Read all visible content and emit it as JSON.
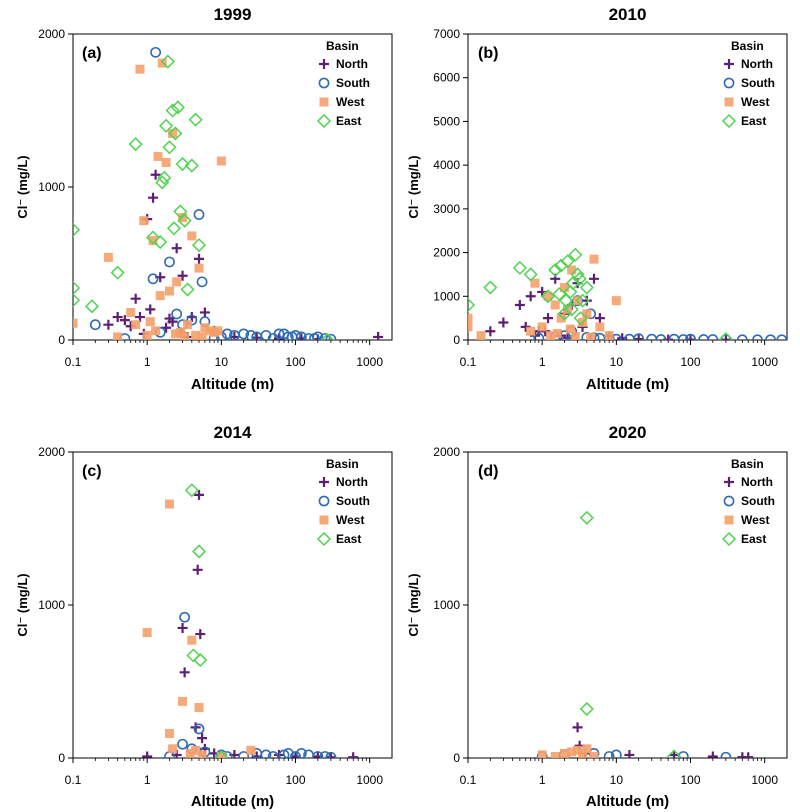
{
  "colors": {
    "North": "#5b1f74",
    "South": "#2e6bb5",
    "West": "#f5a06a",
    "East": "#4fd44f"
  },
  "chart_data": [
    {
      "type": "scatter",
      "title": "1999",
      "panel_label": "(a)",
      "xlabel": "Altitude (m)",
      "ylabel": "Cl⁻ (mg/L)",
      "xscale": "log",
      "xlim": [
        0.1,
        2000
      ],
      "ylim": [
        0,
        2000
      ],
      "xticks": [
        0.1,
        1,
        10,
        100,
        1000
      ],
      "xtick_labels": [
        "0.1",
        "1",
        "10",
        "100",
        "1000"
      ],
      "yticks": [
        0,
        1000,
        2000
      ],
      "ytick_labels": [
        "0",
        "1000",
        "2000"
      ],
      "legend_title": "Basin",
      "legend_position": "top-right",
      "series": [
        {
          "name": "North",
          "marker": "plus",
          "x": [
            0.3,
            0.5,
            0.7,
            1.2,
            1.3,
            1.5,
            2.0,
            2.5,
            3.0,
            5.0,
            1.0,
            0.8,
            0.6,
            2.2,
            4.0,
            0.4,
            1.8,
            3.5,
            6.0,
            8.0,
            1.1,
            0.9,
            2.8,
            15.0,
            30.0,
            60.0,
            120.0,
            200.0,
            1300.0
          ],
          "y": [
            100,
            130,
            270,
            930,
            1080,
            410,
            140,
            600,
            420,
            530,
            790,
            150,
            90,
            120,
            150,
            150,
            80,
            20,
            180,
            60,
            200,
            40,
            50,
            20,
            15,
            10,
            10,
            5,
            20
          ]
        },
        {
          "name": "South",
          "marker": "circle",
          "x": [
            1.3,
            2.0,
            5.0,
            5.5,
            1.2,
            0.2,
            0.5,
            3.0,
            4.0,
            2.5,
            1.5,
            8.0,
            10.0,
            15.0,
            20.0,
            30.0,
            40.0,
            50.0,
            60.0,
            80.0,
            100.0,
            120.0,
            150.0,
            200.0,
            250.0,
            300.0,
            6.0,
            12.0,
            25.0,
            70.0,
            90.0,
            180.0
          ],
          "y": [
            1880,
            510,
            820,
            380,
            400,
            100,
            10,
            100,
            130,
            170,
            50,
            10,
            20,
            30,
            40,
            20,
            30,
            10,
            40,
            20,
            30,
            20,
            10,
            20,
            10,
            5,
            120,
            40,
            30,
            40,
            20,
            10
          ]
        },
        {
          "name": "West",
          "marker": "square",
          "x": [
            0.8,
            1.6,
            1.4,
            1.8,
            2.2,
            3.0,
            4.0,
            5.0,
            10.0,
            0.3,
            0.6,
            0.9,
            1.2,
            1.5,
            2.0,
            2.5,
            3.5,
            6.0,
            7.0,
            8.0,
            9.0,
            0.1,
            0.4,
            1.0,
            2.8,
            4.5,
            5.5,
            0.7,
            1.1,
            1.3,
            2.4,
            3.2
          ],
          "y": [
            1770,
            1810,
            1200,
            1160,
            1350,
            800,
            680,
            470,
            1170,
            540,
            180,
            780,
            650,
            290,
            320,
            380,
            100,
            80,
            60,
            50,
            60,
            110,
            20,
            30,
            50,
            30,
            20,
            100,
            120,
            60,
            40,
            20
          ]
        },
        {
          "name": "East",
          "marker": "diamond",
          "x": [
            0.1,
            0.1,
            0.1,
            0.18,
            0.4,
            0.7,
            1.2,
            1.6,
            1.8,
            1.9,
            2.0,
            2.2,
            2.4,
            2.6,
            2.8,
            3.0,
            3.5,
            4.0,
            4.5,
            5.0,
            1.7,
            2.3,
            1.5,
            3.2,
            270.0
          ],
          "y": [
            720,
            340,
            260,
            220,
            440,
            1280,
            670,
            1030,
            1400,
            1820,
            1260,
            1500,
            1350,
            1520,
            840,
            1150,
            330,
            1140,
            1440,
            620,
            1060,
            730,
            640,
            780,
            0
          ]
        }
      ]
    },
    {
      "type": "scatter",
      "title": "2010",
      "panel_label": "(b)",
      "xlabel": "Altitude (m)",
      "ylabel": "Cl⁻ (mg/L)",
      "xscale": "log",
      "xlim": [
        0.1,
        2000
      ],
      "ylim": [
        0,
        7000
      ],
      "xticks": [
        0.1,
        1,
        10,
        100,
        1000
      ],
      "xtick_labels": [
        "0.1",
        "1",
        "10",
        "100",
        "1000"
      ],
      "yticks": [
        0,
        1000,
        2000,
        3000,
        4000,
        5000,
        6000,
        7000
      ],
      "ytick_labels": [
        "0",
        "1000",
        "2000",
        "3000",
        "4000",
        "5000",
        "6000",
        "7000"
      ],
      "legend_title": "Basin",
      "legend_position": "top-right",
      "series": [
        {
          "name": "North",
          "marker": "plus",
          "x": [
            0.2,
            0.3,
            0.5,
            0.7,
            0.9,
            1.0,
            1.2,
            1.5,
            2.0,
            2.5,
            3.0,
            4.0,
            5.0,
            6.0,
            0.6,
            0.8,
            1.1,
            1.8,
            2.2,
            3.5,
            8.0,
            12.0,
            20.0,
            50.0,
            100.0,
            300.0
          ],
          "y": [
            200,
            400,
            800,
            1000,
            200,
            1100,
            500,
            1400,
            600,
            800,
            1300,
            900,
            1400,
            500,
            300,
            100,
            200,
            100,
            50,
            300,
            80,
            40,
            20,
            10,
            10,
            5
          ]
        },
        {
          "name": "South",
          "marker": "circle",
          "x": [
            0.9,
            1.5,
            2.0,
            3.0,
            4.0,
            5.0,
            6.0,
            8.0,
            10.0,
            15.0,
            20.0,
            30.0,
            40.0,
            60.0,
            80.0,
            100.0,
            150.0,
            200.0,
            300.0,
            500.0,
            800.0,
            1200.0,
            1700.0,
            2.5,
            4.5
          ],
          "y": [
            40,
            80,
            100,
            900,
            60,
            50,
            40,
            30,
            20,
            20,
            30,
            20,
            10,
            20,
            10,
            20,
            10,
            10,
            10,
            5,
            5,
            5,
            5,
            200,
            600
          ]
        },
        {
          "name": "West",
          "marker": "square",
          "x": [
            0.1,
            0.1,
            0.15,
            0.8,
            1.2,
            1.5,
            2.0,
            2.5,
            3.0,
            4.0,
            5.0,
            10.0,
            0.7,
            1.0,
            1.8,
            2.2,
            3.5,
            6.0,
            8.0,
            1.3,
            2.8,
            4.5,
            1.6,
            2.4
          ],
          "y": [
            500,
            300,
            100,
            1300,
            1000,
            800,
            1200,
            1600,
            900,
            600,
            1850,
            900,
            200,
            300,
            500,
            700,
            400,
            300,
            100,
            100,
            80,
            60,
            150,
            250
          ]
        },
        {
          "name": "East",
          "marker": "diamond",
          "x": [
            0.1,
            0.2,
            0.5,
            0.7,
            1.2,
            1.5,
            1.8,
            2.0,
            2.2,
            2.4,
            2.6,
            2.8,
            3.0,
            3.2,
            3.5,
            4.0,
            2.1,
            2.5,
            3.3,
            1.7,
            300.0
          ],
          "y": [
            800,
            1200,
            1650,
            1500,
            1000,
            1600,
            1700,
            600,
            1800,
            1100,
            1300,
            1950,
            1500,
            1400,
            900,
            1200,
            900,
            700,
            500,
            1050,
            20
          ]
        }
      ]
    },
    {
      "type": "scatter",
      "title": "2014",
      "panel_label": "(c)",
      "xlabel": "Altitude (m)",
      "ylabel": "Cl⁻ (mg/L)",
      "xscale": "log",
      "xlim": [
        0.1,
        2000
      ],
      "ylim": [
        0,
        2000
      ],
      "xticks": [
        0.1,
        1,
        10,
        100,
        1000
      ],
      "xtick_labels": [
        "0.1",
        "1",
        "10",
        "100",
        "1000"
      ],
      "yticks": [
        0,
        1000,
        2000
      ],
      "ytick_labels": [
        "0",
        "1000",
        "2000"
      ],
      "legend_title": "Basin",
      "legend_position": "top-right",
      "series": [
        {
          "name": "North",
          "marker": "plus",
          "x": [
            5.0,
            4.8,
            3.0,
            3.2,
            5.2,
            4.5,
            5.5,
            6.0,
            1.0,
            2.5,
            8.0,
            15.0,
            30.0,
            60.0,
            100.0,
            200.0,
            300.0,
            600.0
          ],
          "y": [
            1720,
            1230,
            850,
            560,
            810,
            200,
            130,
            60,
            10,
            20,
            30,
            20,
            10,
            20,
            10,
            10,
            5,
            5
          ]
        },
        {
          "name": "South",
          "marker": "circle",
          "x": [
            3.2,
            5.0,
            3.0,
            4.0,
            10.0,
            20.0,
            30.0,
            40.0,
            50.0,
            70.0,
            100.0,
            120.0,
            150.0,
            200.0,
            300.0,
            2.0,
            6.0,
            12.0,
            80.0,
            250.0
          ],
          "y": [
            920,
            190,
            90,
            60,
            20,
            10,
            30,
            20,
            10,
            20,
            10,
            30,
            20,
            10,
            5,
            10,
            40,
            10,
            30,
            10
          ]
        },
        {
          "name": "West",
          "marker": "square",
          "x": [
            2.0,
            1.0,
            4.0,
            3.0,
            5.0,
            2.0,
            2.2,
            4.5,
            3.8,
            5.5,
            25.0,
            10.0
          ],
          "y": [
            1660,
            820,
            770,
            370,
            330,
            160,
            60,
            50,
            30,
            20,
            50,
            10
          ]
        },
        {
          "name": "East",
          "marker": "diamond",
          "x": [
            4.0,
            5.0,
            4.2,
            5.2,
            10.0
          ],
          "y": [
            1750,
            1350,
            670,
            640,
            5
          ]
        }
      ]
    },
    {
      "type": "scatter",
      "title": "2020",
      "panel_label": "(d)",
      "xlabel": "Altitude (m)",
      "ylabel": "Cl⁻ (mg/L)",
      "xscale": "log",
      "xlim": [
        0.1,
        2000
      ],
      "ylim": [
        0,
        2000
      ],
      "xticks": [
        0.1,
        1,
        10,
        100,
        1000
      ],
      "xtick_labels": [
        "0.1",
        "1",
        "10",
        "100",
        "1000"
      ],
      "yticks": [
        0,
        1000,
        2000
      ],
      "ytick_labels": [
        "0",
        "1000",
        "2000"
      ],
      "legend_title": "Basin",
      "legend_position": "top-right",
      "series": [
        {
          "name": "North",
          "marker": "plus",
          "x": [
            3.0,
            3.2,
            15.0,
            60.0,
            200.0,
            500.0,
            600.0,
            3.8
          ],
          "y": [
            200,
            80,
            20,
            20,
            10,
            5,
            5,
            30
          ]
        },
        {
          "name": "South",
          "marker": "circle",
          "x": [
            1.0,
            2.0,
            5.0,
            10.0,
            80.0,
            300.0,
            8.0
          ],
          "y": [
            10,
            20,
            30,
            20,
            10,
            5,
            10
          ]
        },
        {
          "name": "West",
          "marker": "square",
          "x": [
            1.0,
            2.0,
            3.0,
            4.0,
            3.5,
            2.5,
            1.5,
            5.0
          ],
          "y": [
            20,
            30,
            50,
            60,
            30,
            40,
            10,
            10
          ]
        },
        {
          "name": "East",
          "marker": "diamond",
          "x": [
            4.0,
            4.0,
            60.0
          ],
          "y": [
            1570,
            320,
            10
          ]
        }
      ]
    }
  ]
}
